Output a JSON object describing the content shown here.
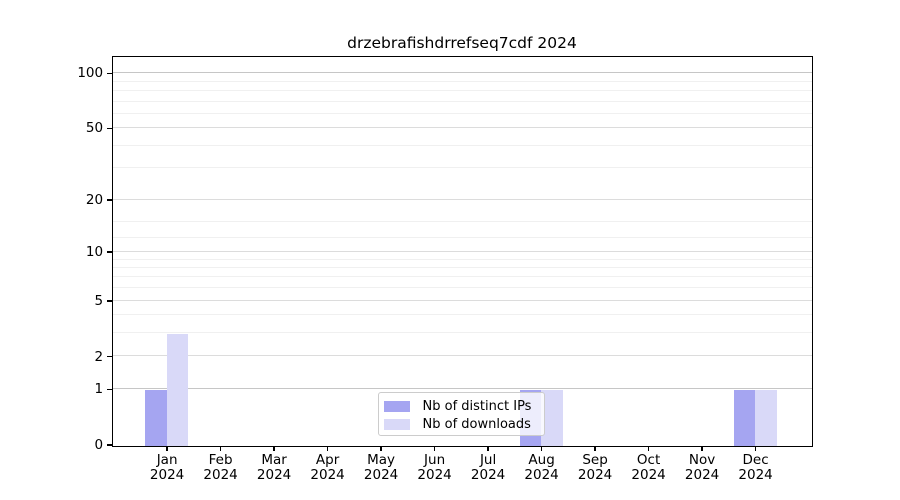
{
  "chart_data": {
    "type": "bar",
    "title": "drzebrafishdrrefseq7cdf 2024",
    "year_label": "2024",
    "categories": [
      "Jan",
      "Feb",
      "Mar",
      "Apr",
      "May",
      "Jun",
      "Jul",
      "Aug",
      "Sep",
      "Oct",
      "Nov",
      "Dec"
    ],
    "series": [
      {
        "name": "Nb of distinct IPs",
        "color": "#a5a5f1",
        "values": [
          1,
          0,
          0,
          0,
          0,
          0,
          0,
          1,
          0,
          0,
          0,
          1
        ]
      },
      {
        "name": "Nb of downloads",
        "color": "#d9d9f8",
        "values": [
          3,
          0,
          0,
          0,
          0,
          0,
          0,
          1,
          0,
          0,
          0,
          1
        ]
      }
    ],
    "y_scale": "log1p",
    "y_ticks": [
      0,
      1,
      2,
      5,
      10,
      20,
      50,
      100
    ],
    "y_minor_ticks": [
      3,
      4,
      6,
      7,
      8,
      9,
      12,
      15,
      30,
      40,
      60,
      70,
      80,
      90
    ],
    "ylim": [
      0,
      117
    ],
    "grid": true,
    "legend_position": "lower-center"
  },
  "colors": {
    "background": "#ffffff",
    "axis": "#000000",
    "major_grid": "#dcdcdc",
    "emphasis_grid": "#c6c6c6",
    "minor_grid": "#f0f0f0",
    "text": "#000000"
  }
}
